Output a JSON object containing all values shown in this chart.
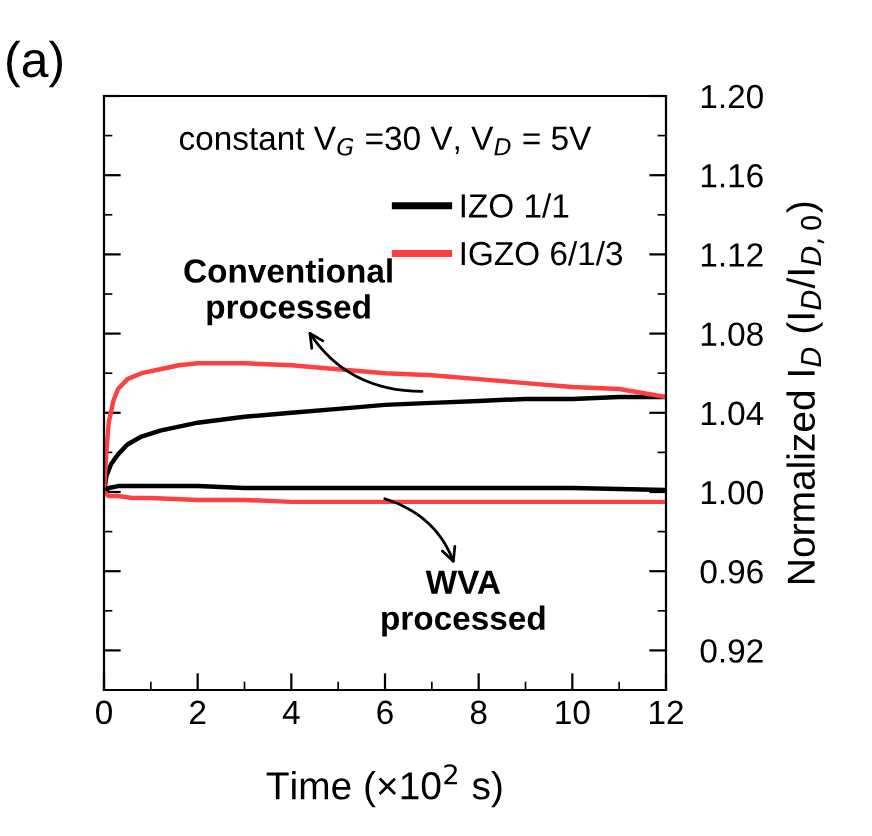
{
  "chart_data": {
    "type": "line",
    "xlabel": "Time (×10$^{2}$ s)",
    "ylabel": "Normalized I$_{D}$ (I$_{D}$/I$_{D,0}$)",
    "xlim": [
      0,
      12
    ],
    "xticks": [
      0,
      2,
      4,
      6,
      8,
      10,
      12
    ],
    "ylim": [
      0.9,
      1.2
    ],
    "yticks": [
      0.92,
      0.96,
      {
        "value": 1.0,
        "label": "1.00"
      },
      1.04,
      1.08,
      1.12,
      1.16,
      {
        "value": 1.2,
        "label": "1.20"
      }
    ],
    "grid": false,
    "legend": "top right",
    "annotations": [
      "(a)",
      "constant V$_{G}$ =30 V, V$_{D}$ = 5V",
      {
        "text": "Conventional\nprocessed",
        "x": 7.5,
        "y": 1.052
      },
      {
        "text": "WVA\nprocessed",
        "x": 5.3,
        "y": 1.0
      }
    ],
    "series": [
      {
        "name": "IZO 1/1",
        "color": "#000000",
        "x": [
          0,
          0.05,
          0.15,
          0.3,
          0.5,
          0.8,
          1.2,
          1.6,
          2,
          3,
          4,
          5,
          6,
          7,
          8,
          9,
          10,
          11,
          12
        ],
        "values": [
          1.0,
          1.008,
          1.014,
          1.019,
          1.024,
          1.028,
          1.031,
          1.033,
          1.035,
          1.038,
          1.04,
          1.042,
          1.044,
          1.045,
          1.046,
          1.047,
          1.047,
          1.048,
          1.048
        ]
      },
      {
        "name": "IGZO 6/1/3",
        "color": "#ff4040",
        "x": [
          0,
          0.05,
          0.1,
          0.2,
          0.3,
          0.5,
          0.8,
          1.2,
          1.6,
          2,
          3,
          4,
          5,
          6,
          7,
          8,
          9,
          10,
          11,
          11.5,
          12
        ],
        "values": [
          1.0,
          1.02,
          1.035,
          1.046,
          1.052,
          1.057,
          1.06,
          1.062,
          1.064,
          1.065,
          1.065,
          1.064,
          1.062,
          1.06,
          1.059,
          1.057,
          1.055,
          1.053,
          1.052,
          1.05,
          1.048
        ]
      },
      {
        "color": "#000000",
        "x": [
          0,
          0.1,
          0.3,
          0.6,
          1,
          2,
          3,
          4,
          6,
          8,
          10,
          12
        ],
        "values": [
          1.0,
          1.002,
          1.003,
          1.003,
          1.003,
          1.003,
          1.002,
          1.002,
          1.002,
          1.002,
          1.002,
          1.001
        ]
      },
      {
        "color": "#ff4040",
        "x": [
          0,
          0.1,
          0.3,
          0.6,
          1,
          2,
          3,
          4,
          6,
          8,
          10,
          12
        ],
        "values": [
          1.0,
          0.998,
          0.998,
          0.997,
          0.997,
          0.996,
          0.996,
          0.995,
          0.995,
          0.995,
          0.995,
          0.995
        ]
      }
    ]
  }
}
